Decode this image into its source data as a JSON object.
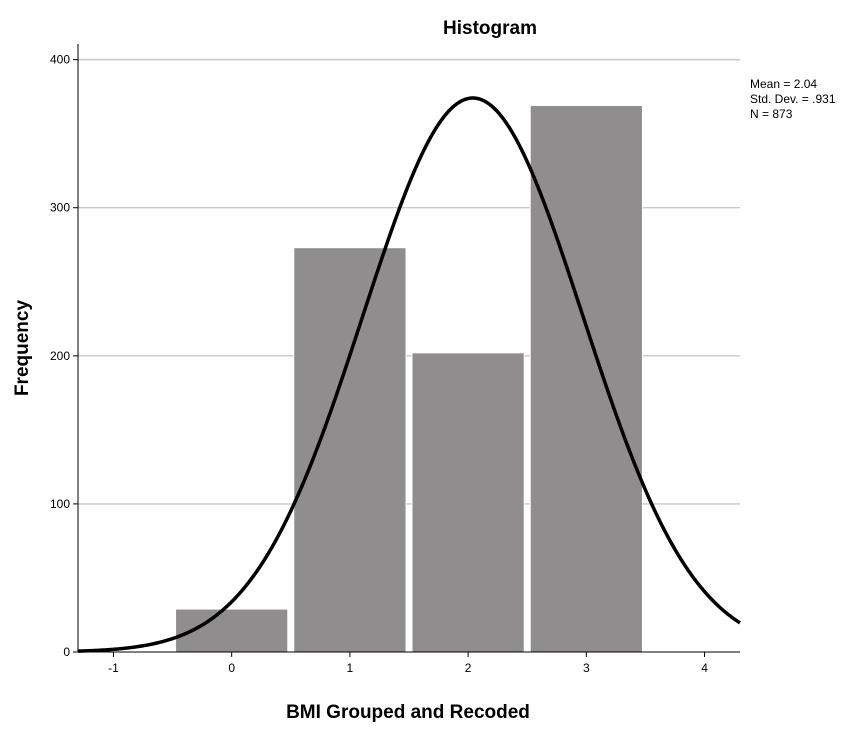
{
  "chart_data": {
    "type": "bar",
    "title": "Histogram",
    "xlabel": "BMI Grouped and Recoded",
    "ylabel": "Frequency",
    "x_ticks": [
      "-1",
      "0",
      "1",
      "2",
      "3",
      "4"
    ],
    "y_ticks": [
      "0",
      "100",
      "200",
      "300",
      "400"
    ],
    "xlim": [
      -1.3,
      4.3
    ],
    "ylim": [
      0,
      420
    ],
    "grid": true,
    "bins": [
      {
        "center": 0,
        "value": 29
      },
      {
        "center": 1,
        "value": 273
      },
      {
        "center": 2,
        "value": 202
      },
      {
        "center": 3,
        "value": 369
      }
    ],
    "normal_curve": {
      "mean": 2.04,
      "std": 0.931,
      "n": 873
    },
    "stats_box": {
      "mean": "Mean = 2.04",
      "std": "Std. Dev. = .931",
      "n": "N = 873"
    },
    "colors": {
      "bar": "#8f8d8d",
      "bar_edge": "#ffffff",
      "curve": "#000000",
      "grid": "#c8c8c8"
    }
  }
}
